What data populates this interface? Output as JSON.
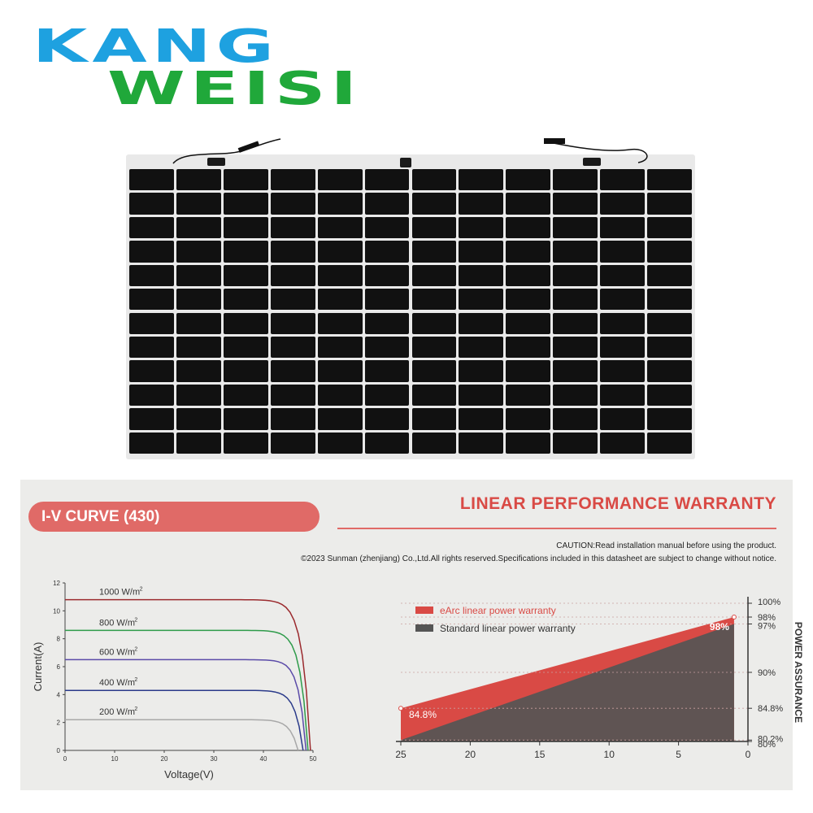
{
  "brand": {
    "line1": "KANG",
    "line2": "WEISI",
    "color1": "#1ea1e0",
    "color2": "#20a83a"
  },
  "iv_header": "I-V CURVE (430)",
  "warranty_header": "LINEAR PERFORMANCE WARRANTY",
  "caution": "CAUTION:Read installation manual before using the product.",
  "copyright": "©2023 Sunman (zhenjiang) Co.,Ltd.All rights reserved.Specifications included in this datasheet are subject to change without notice.",
  "chart_data": [
    {
      "type": "line",
      "title": "",
      "xlabel": "Voltage(V)",
      "ylabel": "Current(A)",
      "xlim": [
        0,
        50
      ],
      "ylim": [
        0,
        12
      ],
      "xticks": [
        "0",
        "10",
        "20",
        "30",
        "40",
        "50"
      ],
      "yticks": [
        "0",
        "2",
        "4",
        "6",
        "8",
        "10",
        "12"
      ],
      "grid": false,
      "series": [
        {
          "name": "1000 W/m²",
          "label": "1000 W/m",
          "sup": "2",
          "color": "#9b2a2e",
          "isc": 10.8,
          "voc": 49.5,
          "knee": 42
        },
        {
          "name": "800 W/m²",
          "label": "800 W/m",
          "sup": "2",
          "color": "#2e9b4a",
          "isc": 8.6,
          "voc": 49.0,
          "knee": 42
        },
        {
          "name": "600 W/m²",
          "label": "600 W/m",
          "sup": "2",
          "color": "#5a4aa8",
          "isc": 6.5,
          "voc": 48.6,
          "knee": 42
        },
        {
          "name": "400 W/m²",
          "label": "400 W/m",
          "sup": "2",
          "color": "#2a3a8a",
          "isc": 4.3,
          "voc": 48.0,
          "knee": 41
        },
        {
          "name": "200 W/m²",
          "label": "200 W/m",
          "sup": "2",
          "color": "#a8a8a8",
          "isc": 2.2,
          "voc": 47.0,
          "knee": 40
        }
      ]
    },
    {
      "type": "area",
      "title": "",
      "ylabel": "POWER ASSURANCE",
      "x": [
        25,
        1
      ],
      "xticks": [
        "25",
        "20",
        "15",
        "10",
        "5",
        "0"
      ],
      "xlim": [
        25,
        0
      ],
      "ylim": [
        80,
        100
      ],
      "yticks": [
        "100%",
        "98%",
        "97%",
        "90%",
        "84.8%",
        "80.2%",
        "80%"
      ],
      "ytick_values": [
        100,
        98,
        97,
        90,
        84.8,
        80.2,
        80
      ],
      "series": [
        {
          "name": "eArc linear power warranty",
          "color": "#d94a45",
          "values": [
            84.8,
            98
          ]
        },
        {
          "name": "Standard linear power warranty",
          "color": "#555555",
          "values": [
            80.2,
            97
          ]
        }
      ],
      "annotations": [
        "84.8%",
        "98%"
      ]
    }
  ]
}
